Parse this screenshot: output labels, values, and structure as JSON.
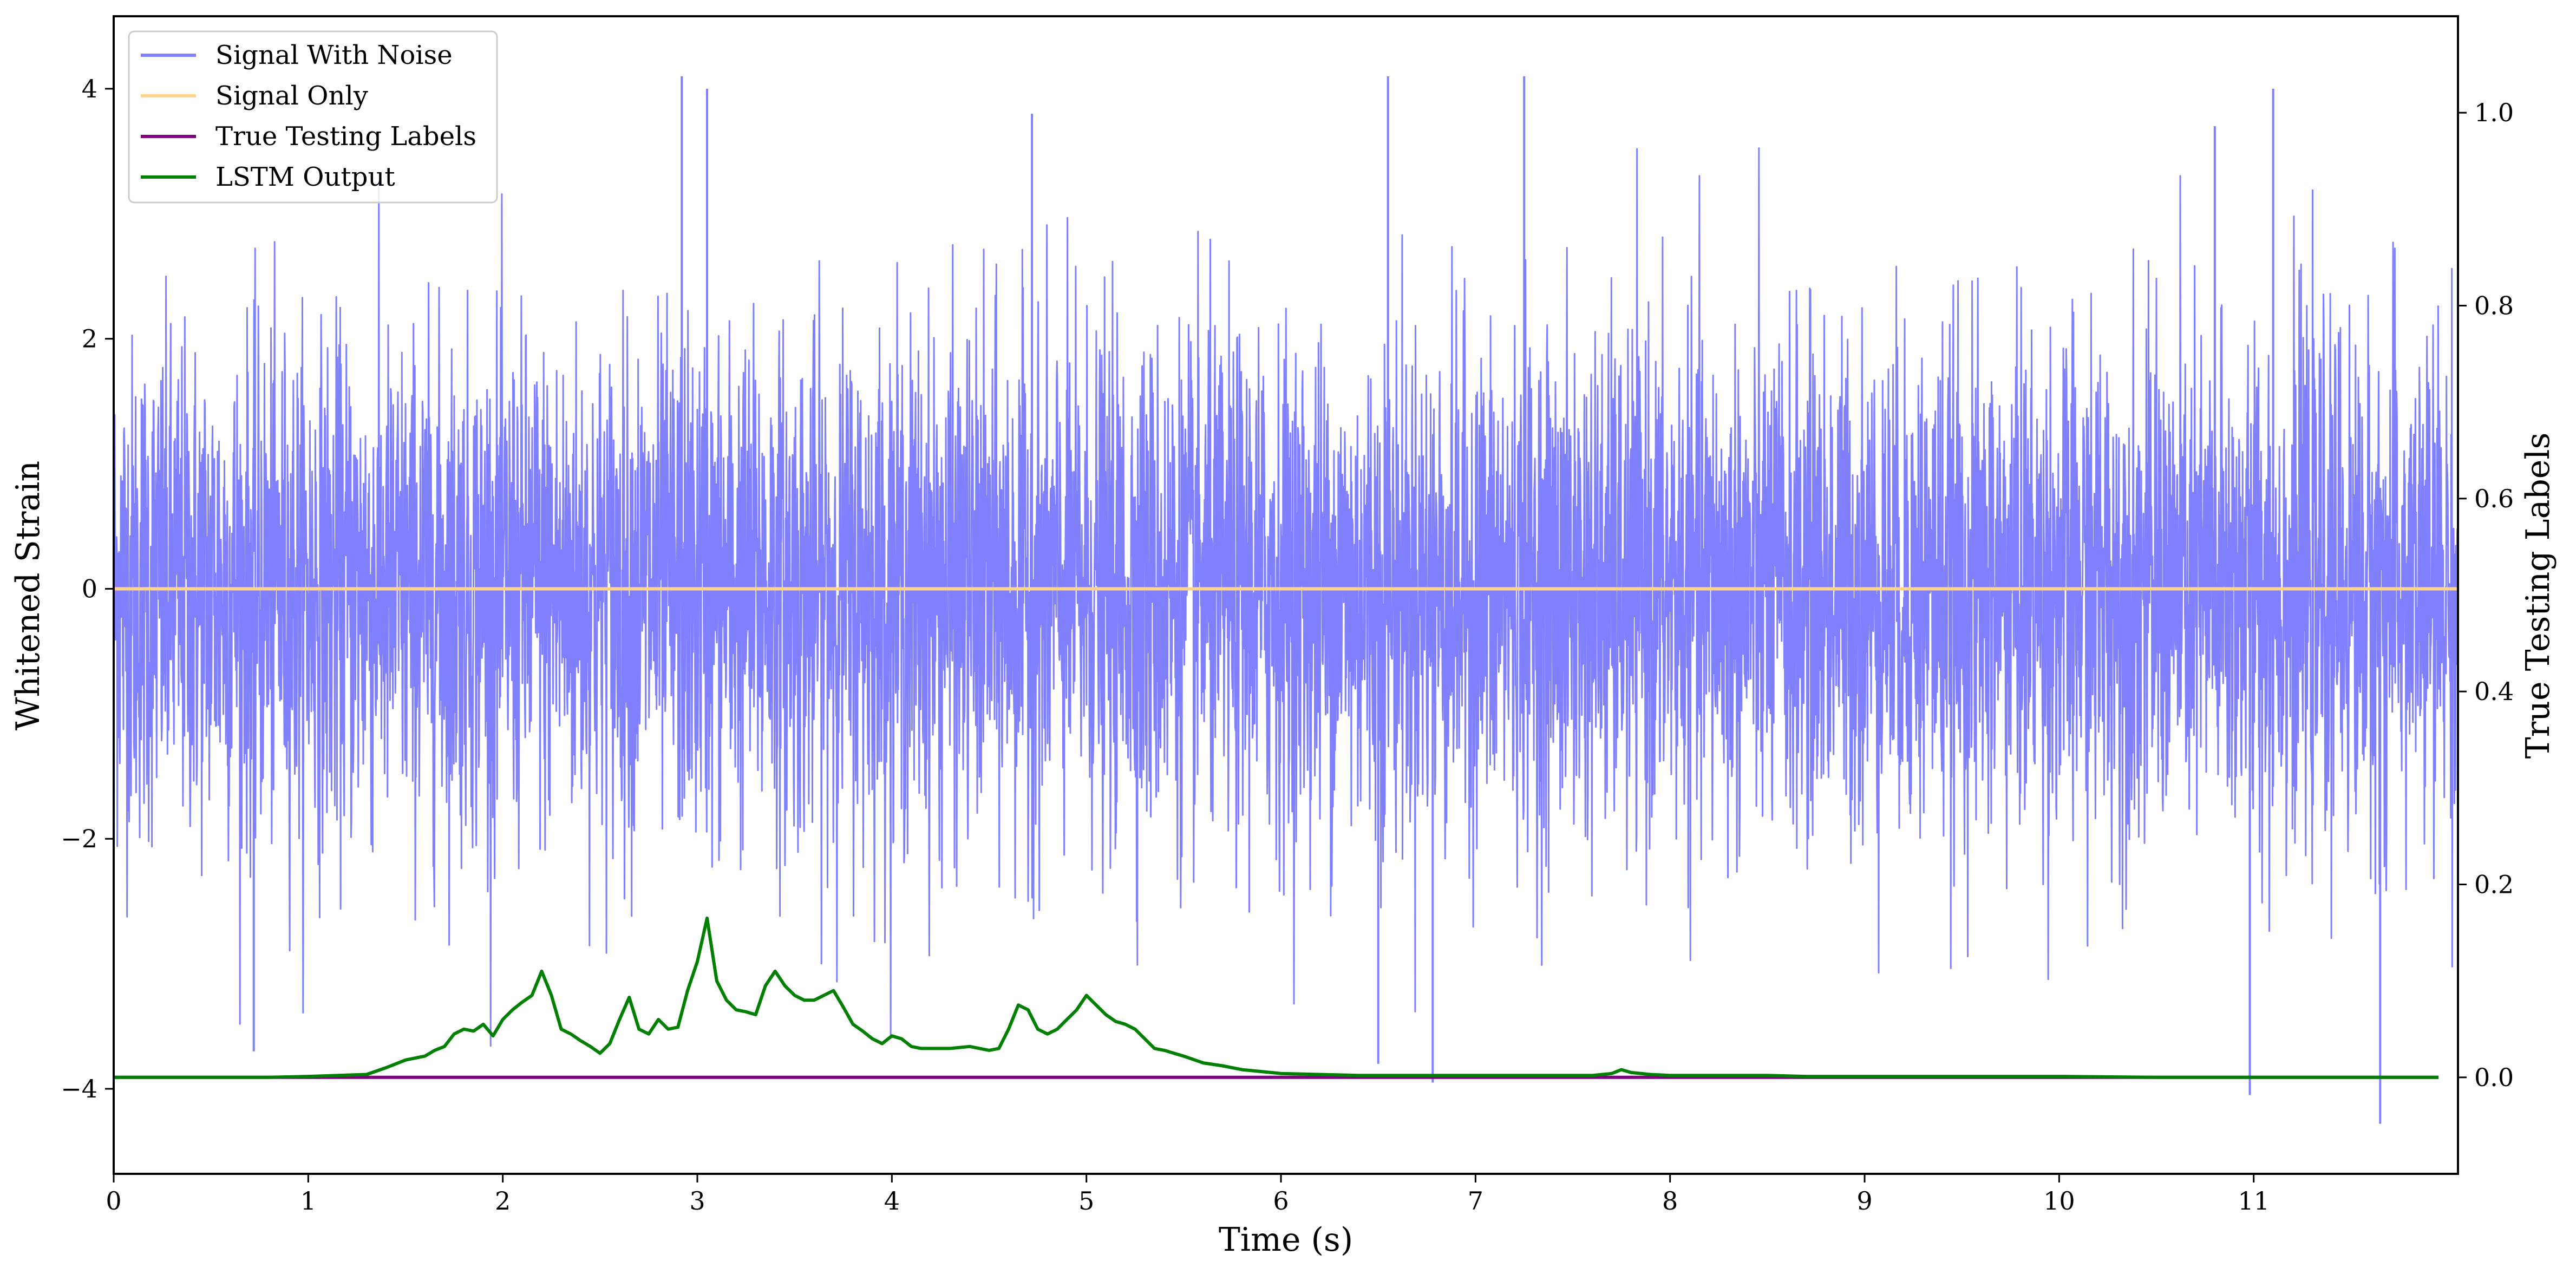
{
  "chart_data": {
    "type": "line",
    "xlabel": "Time (s)",
    "ylabel": "Whitened Strain",
    "y2label": "True Testing Labels",
    "xlim": [
      0,
      12.05
    ],
    "ylim": [
      -4.68,
      4.58
    ],
    "y2lim": [
      -0.1,
      1.1
    ],
    "xticks": [
      0,
      1,
      2,
      3,
      4,
      5,
      6,
      7,
      8,
      9,
      10,
      11
    ],
    "xtick_labels": [
      "0",
      "1",
      "2",
      "3",
      "4",
      "5",
      "6",
      "7",
      "8",
      "9",
      "10",
      "11"
    ],
    "yticks": [
      -4,
      -2,
      0,
      2,
      4
    ],
    "ytick_labels": [
      "−4",
      "−2",
      "0",
      "2",
      "4"
    ],
    "y2ticks": [
      0.0,
      0.2,
      0.4,
      0.6,
      0.8,
      1.0
    ],
    "y2tick_labels": [
      "0.0",
      "0.2",
      "0.4",
      "0.6",
      "0.8",
      "1.0"
    ],
    "legend_position": "upper-left",
    "grid": false,
    "series": [
      {
        "name": "Signal With Noise",
        "axis": "left",
        "color": "#8080ff",
        "style": "dense noise, approx. standard deviation 1.0, peaks to about ±4.1",
        "x_range": [
          0,
          12.05
        ],
        "outlier_peaks": [
          [
            2.92,
            4.1
          ],
          [
            3.05,
            4.0
          ],
          [
            4.72,
            3.8
          ],
          [
            6.55,
            4.1
          ],
          [
            7.25,
            4.1
          ],
          [
            10.8,
            3.7
          ],
          [
            11.1,
            4.0
          ],
          [
            11.65,
            -4.28
          ],
          [
            0.72,
            -3.7
          ],
          [
            6.78,
            -3.95
          ],
          [
            10.98,
            -4.05
          ],
          [
            6.5,
            -3.8
          ]
        ]
      },
      {
        "name": "Signal Only",
        "axis": "left",
        "color": "#ffd58a",
        "x": [
          0,
          12.05
        ],
        "values": [
          0,
          0
        ]
      },
      {
        "name": "True Testing Labels",
        "axis": "right",
        "color": "#800080",
        "x": [
          0,
          11.95
        ],
        "values": [
          0,
          0
        ]
      },
      {
        "name": "LSTM Output",
        "axis": "right",
        "color": "#008000",
        "x": [
          0,
          0.8,
          1.0,
          1.3,
          1.4,
          1.5,
          1.6,
          1.65,
          1.7,
          1.75,
          1.8,
          1.85,
          1.9,
          1.95,
          2.0,
          2.05,
          2.1,
          2.15,
          2.2,
          2.25,
          2.3,
          2.35,
          2.4,
          2.45,
          2.5,
          2.55,
          2.6,
          2.65,
          2.7,
          2.75,
          2.8,
          2.85,
          2.9,
          2.95,
          3.0,
          3.05,
          3.1,
          3.15,
          3.2,
          3.25,
          3.3,
          3.35,
          3.4,
          3.45,
          3.5,
          3.55,
          3.6,
          3.65,
          3.7,
          3.75,
          3.8,
          3.85,
          3.9,
          3.95,
          4.0,
          4.05,
          4.1,
          4.15,
          4.2,
          4.3,
          4.4,
          4.5,
          4.55,
          4.6,
          4.65,
          4.7,
          4.75,
          4.8,
          4.85,
          4.9,
          4.95,
          5.0,
          5.05,
          5.1,
          5.15,
          5.2,
          5.25,
          5.3,
          5.35,
          5.4,
          5.5,
          5.6,
          5.7,
          5.8,
          5.9,
          6.0,
          6.2,
          6.4,
          6.6,
          6.8,
          7.0,
          7.2,
          7.4,
          7.6,
          7.7,
          7.75,
          7.8,
          7.9,
          8.0,
          8.2,
          8.35,
          8.5,
          8.7,
          9.0,
          9.5,
          10.0,
          10.5,
          11.0,
          11.5,
          11.95
        ],
        "values": [
          0.0,
          0.0,
          0.001,
          0.003,
          0.01,
          0.018,
          0.022,
          0.028,
          0.032,
          0.045,
          0.05,
          0.048,
          0.055,
          0.043,
          0.06,
          0.07,
          0.078,
          0.085,
          0.11,
          0.085,
          0.05,
          0.045,
          0.038,
          0.032,
          0.025,
          0.035,
          0.06,
          0.083,
          0.05,
          0.045,
          0.06,
          0.05,
          0.052,
          0.09,
          0.12,
          0.165,
          0.1,
          0.08,
          0.07,
          0.068,
          0.065,
          0.095,
          0.11,
          0.095,
          0.085,
          0.08,
          0.08,
          0.085,
          0.09,
          0.073,
          0.055,
          0.048,
          0.04,
          0.035,
          0.043,
          0.04,
          0.032,
          0.03,
          0.03,
          0.03,
          0.032,
          0.028,
          0.03,
          0.05,
          0.075,
          0.07,
          0.05,
          0.045,
          0.05,
          0.06,
          0.07,
          0.085,
          0.075,
          0.065,
          0.058,
          0.055,
          0.05,
          0.04,
          0.03,
          0.028,
          0.022,
          0.015,
          0.012,
          0.008,
          0.006,
          0.004,
          0.003,
          0.002,
          0.002,
          0.002,
          0.002,
          0.002,
          0.002,
          0.002,
          0.004,
          0.008,
          0.005,
          0.003,
          0.002,
          0.002,
          0.002,
          0.002,
          0.001,
          0.001,
          0.001,
          0.001,
          0.0,
          0.0,
          0.0,
          0.0
        ]
      }
    ]
  }
}
